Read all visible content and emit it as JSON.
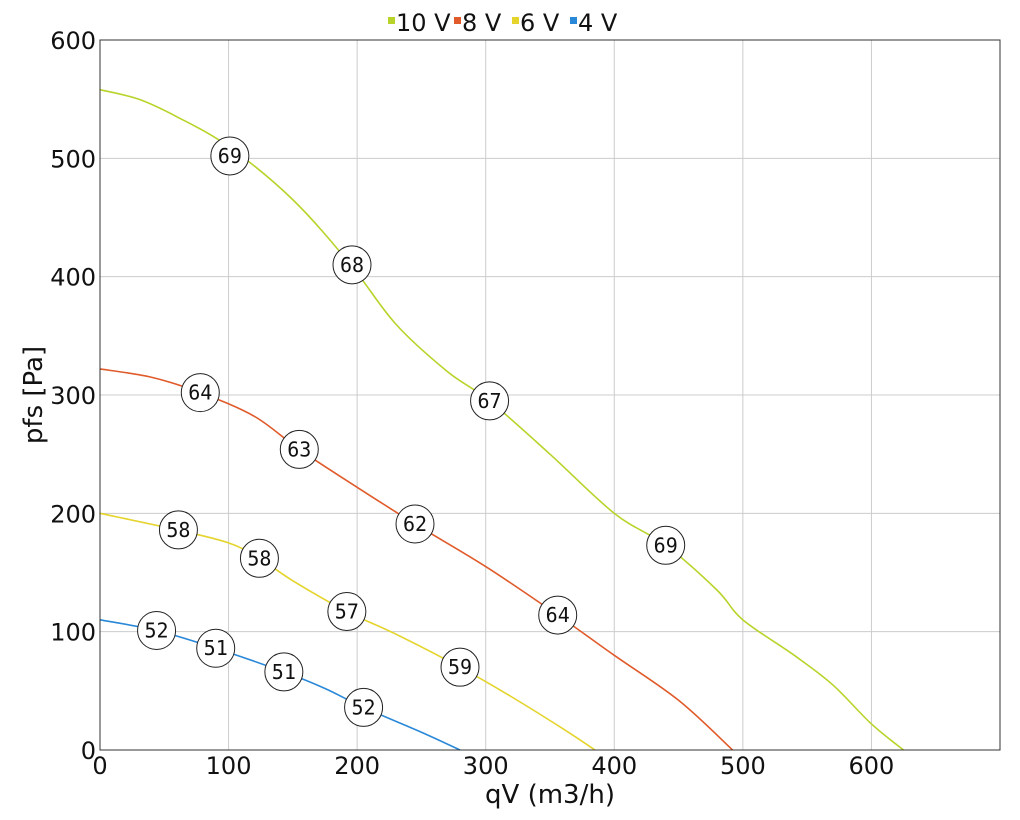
{
  "chart_data": {
    "type": "line",
    "title": "",
    "xlabel": "qV (m3/h)",
    "ylabel": "pfs [Pa]",
    "xlim": [
      0,
      700
    ],
    "ylim": [
      0,
      600
    ],
    "xticks": [
      0,
      100,
      200,
      300,
      400,
      500,
      600
    ],
    "yticks": [
      0,
      100,
      200,
      300,
      400,
      500,
      600
    ],
    "grid": true,
    "legend_position": "top-center",
    "series": [
      {
        "name": "10 V",
        "color": "#b8d42a",
        "points": [
          [
            0,
            558
          ],
          [
            30,
            550
          ],
          [
            60,
            535
          ],
          [
            100,
            510
          ],
          [
            150,
            465
          ],
          [
            195,
            410
          ],
          [
            230,
            360
          ],
          [
            270,
            320
          ],
          [
            303,
            295
          ],
          [
            350,
            250
          ],
          [
            400,
            200
          ],
          [
            440,
            173
          ],
          [
            480,
            135
          ],
          [
            500,
            110
          ],
          [
            540,
            80
          ],
          [
            570,
            55
          ],
          [
            600,
            22
          ],
          [
            625,
            0
          ]
        ],
        "annotations": [
          {
            "x": 101,
            "y": 502,
            "label": "69"
          },
          {
            "x": 196,
            "y": 410,
            "label": "68"
          },
          {
            "x": 303,
            "y": 295,
            "label": "67"
          },
          {
            "x": 440,
            "y": 173,
            "label": "69"
          }
        ]
      },
      {
        "name": "8 V",
        "color": "#e05a2a",
        "points": [
          [
            0,
            322
          ],
          [
            40,
            315
          ],
          [
            78,
            302
          ],
          [
            120,
            282
          ],
          [
            155,
            254
          ],
          [
            200,
            222
          ],
          [
            245,
            191
          ],
          [
            300,
            155
          ],
          [
            356,
            114
          ],
          [
            400,
            80
          ],
          [
            450,
            42
          ],
          [
            492,
            0
          ]
        ],
        "annotations": [
          {
            "x": 78,
            "y": 302,
            "label": "64"
          },
          {
            "x": 155,
            "y": 254,
            "label": "63"
          },
          {
            "x": 245,
            "y": 191,
            "label": "62"
          },
          {
            "x": 356,
            "y": 114,
            "label": "64"
          }
        ]
      },
      {
        "name": "6 V",
        "color": "#e4d42c",
        "points": [
          [
            0,
            200
          ],
          [
            60,
            186
          ],
          [
            100,
            175
          ],
          [
            124,
            162
          ],
          [
            150,
            143
          ],
          [
            192,
            117
          ],
          [
            230,
            98
          ],
          [
            280,
            70
          ],
          [
            320,
            45
          ],
          [
            360,
            18
          ],
          [
            385,
            0
          ]
        ],
        "annotations": [
          {
            "x": 61,
            "y": 186,
            "label": "58"
          },
          {
            "x": 124,
            "y": 162,
            "label": "58"
          },
          {
            "x": 192,
            "y": 117,
            "label": "57"
          },
          {
            "x": 280,
            "y": 70,
            "label": "59"
          }
        ]
      },
      {
        "name": "4 V",
        "color": "#2a88d8",
        "points": [
          [
            0,
            110
          ],
          [
            44,
            101
          ],
          [
            90,
            86
          ],
          [
            143,
            66
          ],
          [
            175,
            52
          ],
          [
            205,
            36
          ],
          [
            250,
            15
          ],
          [
            280,
            0
          ]
        ],
        "annotations": [
          {
            "x": 44,
            "y": 101,
            "label": "52"
          },
          {
            "x": 90,
            "y": 86,
            "label": "51"
          },
          {
            "x": 143,
            "y": 66,
            "label": "51"
          },
          {
            "x": 205,
            "y": 36,
            "label": "52"
          }
        ]
      }
    ]
  }
}
